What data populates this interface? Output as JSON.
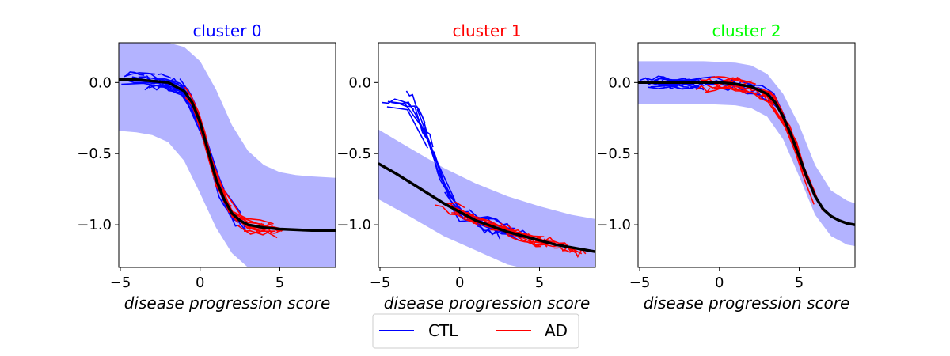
{
  "chart_data": [
    {
      "type": "line",
      "title": "cluster 0",
      "title_color": "#0000ff",
      "xlabel": "disease progression score",
      "ylabel": "",
      "xlim": [
        -5.1,
        8.5
      ],
      "ylim": [
        -1.3,
        0.28
      ],
      "x_ticks": [
        -5,
        0,
        5
      ],
      "x_tick_labels": [
        "−5",
        "0",
        "5"
      ],
      "y_ticks": [
        0.0,
        -0.5,
        -1.0
      ],
      "y_tick_labels": [
        "0.0",
        "−0.5",
        "−1.0"
      ],
      "band_color": "#b3b3ff",
      "trajectories_description_only": false,
      "mean_curve": {
        "x": [
          -5.1,
          -4,
          -3,
          -2,
          -1,
          -0.5,
          0,
          0.5,
          1,
          1.5,
          2,
          2.5,
          3,
          4,
          5,
          6,
          7,
          8.5
        ],
        "y": [
          0.02,
          0.02,
          0.01,
          0.0,
          -0.06,
          -0.14,
          -0.28,
          -0.48,
          -0.68,
          -0.82,
          -0.92,
          -0.97,
          -1.0,
          -1.02,
          -1.03,
          -1.035,
          -1.04,
          -1.04
        ]
      },
      "band_upper": {
        "x": [
          -5.1,
          -3,
          -2,
          -1,
          0,
          1,
          2,
          3,
          4,
          5,
          6,
          7,
          8.5
        ],
        "y": [
          0.3,
          0.3,
          0.28,
          0.25,
          0.15,
          -0.05,
          -0.3,
          -0.48,
          -0.58,
          -0.63,
          -0.65,
          -0.66,
          -0.67
        ]
      },
      "band_lower": {
        "x": [
          -5.1,
          -4,
          -3,
          -2,
          -1,
          0,
          1,
          2,
          3,
          4,
          5,
          6,
          8.5
        ],
        "y": [
          -0.34,
          -0.35,
          -0.37,
          -0.42,
          -0.55,
          -0.78,
          -1.02,
          -1.2,
          -1.3,
          -1.33,
          -1.34,
          -1.35,
          -1.35
        ]
      },
      "trajectory_groups": [
        {
          "series": "CTL",
          "x_range": [
            -5.0,
            3.5
          ],
          "offset": 0.0,
          "count": 38
        },
        {
          "series": "AD",
          "x_range": [
            -1.0,
            5.5
          ],
          "offset": 0.0,
          "count": 30
        }
      ]
    },
    {
      "type": "line",
      "title": "cluster 1",
      "title_color": "#ff0000",
      "xlabel": "disease progression score",
      "ylabel": "",
      "xlim": [
        -5.1,
        8.5
      ],
      "ylim": [
        -1.3,
        0.28
      ],
      "x_ticks": [
        -5,
        0,
        5
      ],
      "x_tick_labels": [
        "−5",
        "0",
        "5"
      ],
      "y_ticks": [
        0.0,
        -0.5,
        -1.0
      ],
      "y_tick_labels": [
        "0.0",
        "−0.5",
        "−1.0"
      ],
      "band_color": "#b3b3ff",
      "mean_curve": {
        "x": [
          -5.1,
          -4,
          -3,
          -2,
          -1,
          0,
          1,
          2,
          3,
          4,
          5,
          6,
          7,
          8.5
        ],
        "y": [
          -0.57,
          -0.64,
          -0.71,
          -0.78,
          -0.85,
          -0.91,
          -0.97,
          -1.01,
          -1.05,
          -1.08,
          -1.11,
          -1.14,
          -1.16,
          -1.19
        ]
      },
      "band_upper": {
        "x": [
          -5.1,
          -3,
          -1,
          1,
          3,
          5,
          7,
          8.5
        ],
        "y": [
          -0.33,
          -0.47,
          -0.6,
          -0.71,
          -0.8,
          -0.87,
          -0.93,
          -0.96
        ]
      },
      "band_lower": {
        "x": [
          -5.1,
          -3,
          -1,
          1,
          3,
          5,
          7,
          8.5
        ],
        "y": [
          -0.82,
          -0.95,
          -1.08,
          -1.18,
          -1.28,
          -1.33,
          -1.37,
          -1.4
        ]
      },
      "trajectory_groups": [
        {
          "series": "CTL",
          "x_range": [
            -5.0,
            4.5
          ],
          "offset": 0.0,
          "count": 34
        },
        {
          "series": "AD",
          "x_range": [
            -2.0,
            8.5
          ],
          "offset": 0.0,
          "count": 30
        }
      ]
    },
    {
      "type": "line",
      "title": "cluster 2",
      "title_color": "#00ff00",
      "xlabel": "disease progression score",
      "ylabel": "",
      "xlim": [
        -5.1,
        8.5
      ],
      "ylim": [
        -1.3,
        0.28
      ],
      "x_ticks": [
        -5,
        0,
        5
      ],
      "x_tick_labels": [
        "−5",
        "0",
        "5"
      ],
      "y_ticks": [
        0.0,
        -0.5,
        -1.0
      ],
      "y_tick_labels": [
        "0.0",
        "−0.5",
        "−1.0"
      ],
      "band_color": "#b3b3ff",
      "mean_curve": {
        "x": [
          -5.1,
          -3,
          -1,
          0,
          1,
          2,
          3,
          3.5,
          4,
          4.5,
          5,
          5.5,
          6,
          6.5,
          7,
          7.5,
          8,
          8.5
        ],
        "y": [
          0.0,
          0.0,
          0.0,
          0.0,
          -0.01,
          -0.03,
          -0.08,
          -0.14,
          -0.24,
          -0.37,
          -0.52,
          -0.67,
          -0.8,
          -0.89,
          -0.94,
          -0.97,
          -0.99,
          -1.0
        ]
      },
      "band_upper": {
        "x": [
          -5.1,
          -3,
          -1,
          1,
          2,
          3,
          4,
          5,
          6,
          7,
          8,
          8.5
        ],
        "y": [
          0.15,
          0.15,
          0.15,
          0.14,
          0.12,
          0.06,
          -0.08,
          -0.3,
          -0.58,
          -0.76,
          -0.83,
          -0.85
        ]
      },
      "band_lower": {
        "x": [
          -5.1,
          -3,
          -1,
          1,
          2,
          3,
          4,
          5,
          6,
          7,
          8,
          8.5
        ],
        "y": [
          -0.15,
          -0.15,
          -0.15,
          -0.16,
          -0.18,
          -0.24,
          -0.4,
          -0.66,
          -0.93,
          -1.08,
          -1.14,
          -1.15
        ]
      },
      "trajectory_groups": [
        {
          "series": "CTL",
          "x_range": [
            -5.0,
            4.5
          ],
          "offset": 0.0,
          "count": 34
        },
        {
          "series": "AD",
          "x_range": [
            -1.5,
            6.5
          ],
          "offset": 0.0,
          "count": 30
        }
      ]
    }
  ],
  "legend": {
    "placement": "bottom-center",
    "entries": [
      {
        "label": "CTL",
        "color": "#0000ff"
      },
      {
        "label": "AD",
        "color": "#ff0000"
      }
    ]
  },
  "colors": {
    "mean_line": "#000000",
    "ctl": "#0000ff",
    "ad": "#ff0000"
  }
}
